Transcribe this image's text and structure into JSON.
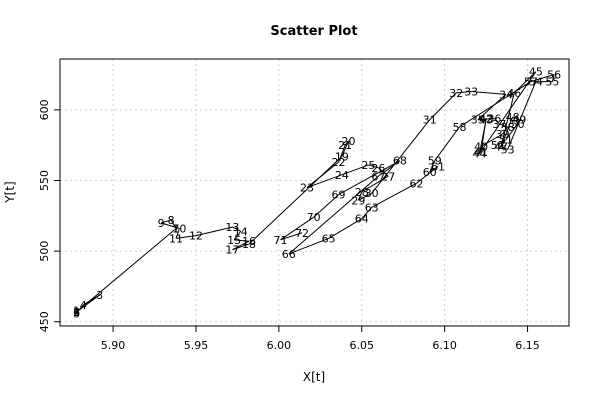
{
  "chart_data": {
    "type": "scatter",
    "title": "Scatter Plot",
    "xlabel": "X[t]",
    "ylabel": "Y[t]",
    "xlim": [
      5.868,
      6.175
    ],
    "ylim": [
      447,
      636
    ],
    "grid": true,
    "x_ticks": [
      "5.90",
      "5.95",
      "6.00",
      "6.05",
      "6.10",
      "6.15"
    ],
    "x_tick_values": [
      5.9,
      5.95,
      6.0,
      6.05,
      6.1,
      6.15
    ],
    "y_ticks": [
      "450",
      "500",
      "550",
      "600"
    ],
    "y_tick_values": [
      450,
      500,
      550,
      600
    ],
    "points": [
      {
        "label": "1",
        "x": 5.878,
        "y": 458
      },
      {
        "label": "2",
        "x": 5.878,
        "y": 457
      },
      {
        "label": "3",
        "x": 5.892,
        "y": 469
      },
      {
        "label": "4",
        "x": 5.882,
        "y": 462
      },
      {
        "label": "5",
        "x": 5.878,
        "y": 456
      },
      {
        "label": "6",
        "x": 5.878,
        "y": 457
      },
      {
        "label": "7",
        "x": 5.938,
        "y": 516
      },
      {
        "label": "8",
        "x": 5.935,
        "y": 522
      },
      {
        "label": "9",
        "x": 5.929,
        "y": 520
      },
      {
        "label": "10",
        "x": 5.94,
        "y": 516
      },
      {
        "label": "11",
        "x": 5.938,
        "y": 509
      },
      {
        "label": "12",
        "x": 5.95,
        "y": 511
      },
      {
        "label": "13",
        "x": 5.972,
        "y": 517
      },
      {
        "label": "14",
        "x": 5.977,
        "y": 514
      },
      {
        "label": "15",
        "x": 5.973,
        "y": 508
      },
      {
        "label": "16",
        "x": 5.982,
        "y": 507
      },
      {
        "label": "17",
        "x": 5.972,
        "y": 501
      },
      {
        "label": "18",
        "x": 5.982,
        "y": 505
      },
      {
        "label": "19",
        "x": 6.038,
        "y": 567
      },
      {
        "label": "20",
        "x": 6.042,
        "y": 578
      },
      {
        "label": "21",
        "x": 6.04,
        "y": 575
      },
      {
        "label": "22",
        "x": 6.036,
        "y": 563
      },
      {
        "label": "23",
        "x": 6.017,
        "y": 545
      },
      {
        "label": "24",
        "x": 6.038,
        "y": 554
      },
      {
        "label": "25",
        "x": 6.054,
        "y": 561
      },
      {
        "label": "26",
        "x": 6.06,
        "y": 559
      },
      {
        "label": "27",
        "x": 6.066,
        "y": 553
      },
      {
        "label": "28",
        "x": 6.05,
        "y": 542
      },
      {
        "label": "29",
        "x": 6.048,
        "y": 536
      },
      {
        "label": "30",
        "x": 6.056,
        "y": 541
      },
      {
        "label": "31",
        "x": 6.091,
        "y": 593
      },
      {
        "label": "32",
        "x": 6.107,
        "y": 612
      },
      {
        "label": "33",
        "x": 6.116,
        "y": 613
      },
      {
        "label": "34",
        "x": 6.137,
        "y": 611
      },
      {
        "label": "35",
        "x": 6.12,
        "y": 593
      },
      {
        "label": "36",
        "x": 6.13,
        "y": 594
      },
      {
        "label": "37",
        "x": 6.133,
        "y": 590
      },
      {
        "label": "38",
        "x": 6.138,
        "y": 588
      },
      {
        "label": "39",
        "x": 6.135,
        "y": 583
      },
      {
        "label": "40",
        "x": 6.122,
        "y": 574
      },
      {
        "label": "41",
        "x": 6.122,
        "y": 570
      },
      {
        "label": "42",
        "x": 6.125,
        "y": 594
      },
      {
        "label": "43",
        "x": 6.125,
        "y": 593
      },
      {
        "label": "44",
        "x": 6.121,
        "y": 569
      },
      {
        "label": "45",
        "x": 6.155,
        "y": 627
      },
      {
        "label": "46",
        "x": 6.142,
        "y": 612
      },
      {
        "label": "47",
        "x": 6.134,
        "y": 574
      },
      {
        "label": "48",
        "x": 6.141,
        "y": 595
      },
      {
        "label": "49",
        "x": 6.145,
        "y": 593
      },
      {
        "label": "50",
        "x": 6.144,
        "y": 590
      },
      {
        "label": "51",
        "x": 6.137,
        "y": 579
      },
      {
        "label": "52",
        "x": 6.132,
        "y": 575
      },
      {
        "label": "53",
        "x": 6.138,
        "y": 572
      },
      {
        "label": "54",
        "x": 6.155,
        "y": 620
      },
      {
        "label": "55",
        "x": 6.165,
        "y": 620
      },
      {
        "label": "56",
        "x": 6.166,
        "y": 625
      },
      {
        "label": "57",
        "x": 6.152,
        "y": 620
      },
      {
        "label": "58",
        "x": 6.109,
        "y": 588
      },
      {
        "label": "59",
        "x": 6.094,
        "y": 564
      },
      {
        "label": "60",
        "x": 6.091,
        "y": 556
      },
      {
        "label": "61",
        "x": 6.096,
        "y": 560
      },
      {
        "label": "62",
        "x": 6.083,
        "y": 548
      },
      {
        "label": "63",
        "x": 6.056,
        "y": 531
      },
      {
        "label": "64",
        "x": 6.05,
        "y": 523
      },
      {
        "label": "65",
        "x": 6.03,
        "y": 509
      },
      {
        "label": "66",
        "x": 6.006,
        "y": 498
      },
      {
        "label": "67",
        "x": 6.06,
        "y": 553
      },
      {
        "label": "68",
        "x": 6.073,
        "y": 564
      },
      {
        "label": "69",
        "x": 6.036,
        "y": 540
      },
      {
        "label": "70",
        "x": 6.021,
        "y": 524
      },
      {
        "label": "71",
        "x": 6.001,
        "y": 508
      },
      {
        "label": "72",
        "x": 6.014,
        "y": 513
      }
    ],
    "series_order": [
      "1",
      "2",
      "3",
      "4",
      "5",
      "6",
      "7",
      "8",
      "9",
      "10",
      "11",
      "12",
      "13",
      "14",
      "15",
      "16",
      "17",
      "18",
      "19",
      "20",
      "21",
      "22",
      "23",
      "24",
      "25",
      "26",
      "27",
      "28",
      "29",
      "30",
      "31",
      "32",
      "33",
      "34",
      "35",
      "36",
      "37",
      "38",
      "39",
      "40",
      "41",
      "42",
      "43",
      "44",
      "45",
      "46",
      "47",
      "48",
      "49",
      "50",
      "51",
      "52",
      "53",
      "54",
      "55",
      "56",
      "57",
      "58",
      "59",
      "60",
      "61",
      "62",
      "63",
      "64",
      "65",
      "66",
      "67",
      "68",
      "69",
      "70",
      "71",
      "72"
    ]
  }
}
